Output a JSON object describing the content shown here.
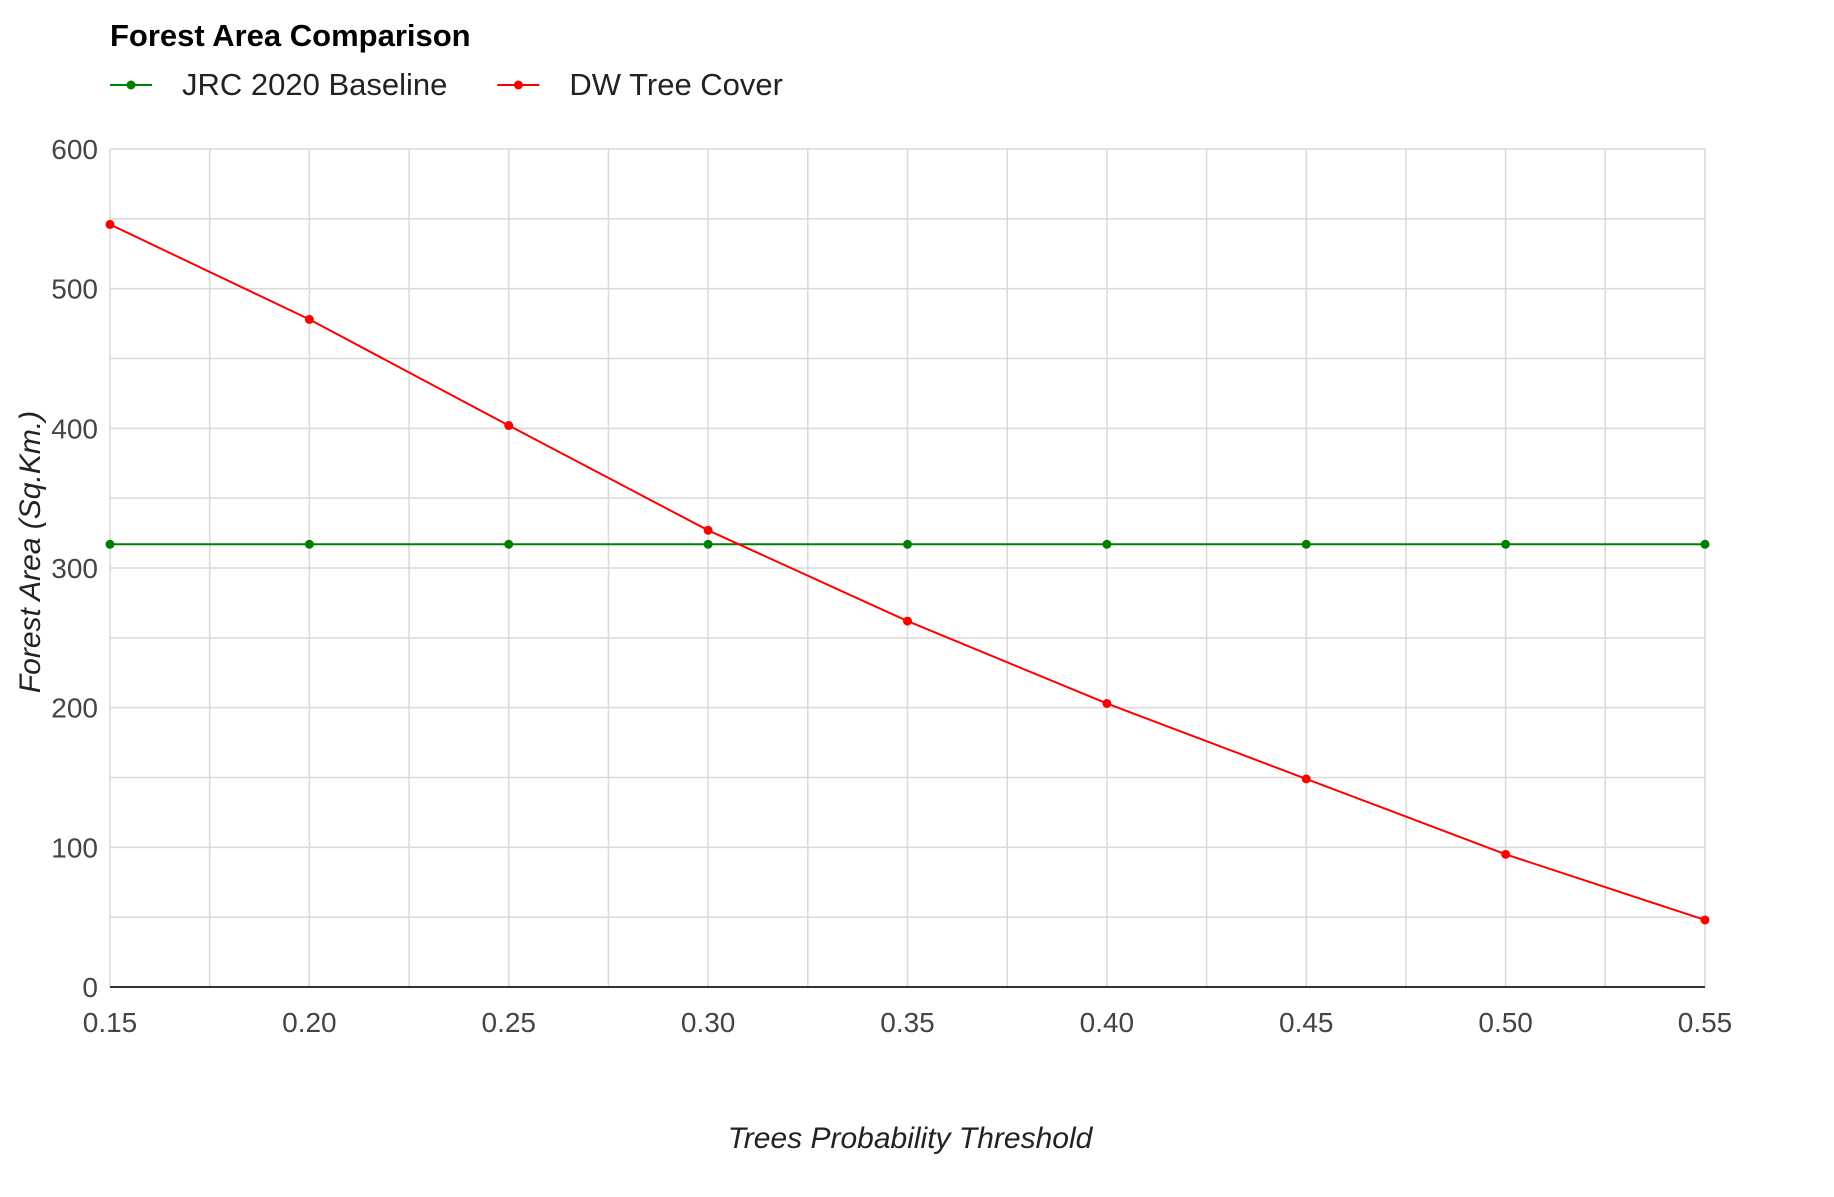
{
  "chart_data": {
    "type": "line",
    "title": "Forest Area Comparison",
    "xlabel": "Trees Probability Threshold",
    "ylabel": "Forest Area (Sq.Km.)",
    "x": [
      0.15,
      0.2,
      0.25,
      0.3,
      0.35,
      0.4,
      0.45,
      0.5,
      0.55
    ],
    "x_tick_labels": [
      "0.15",
      "0.20",
      "0.25",
      "0.30",
      "0.35",
      "0.40",
      "0.45",
      "0.50",
      "0.55"
    ],
    "y_tick_labels": [
      "0",
      "100",
      "200",
      "300",
      "400",
      "500",
      "600"
    ],
    "xlim": [
      0.15,
      0.55
    ],
    "ylim": [
      0,
      600
    ],
    "y_ticks": [
      0,
      100,
      200,
      300,
      400,
      500,
      600
    ],
    "y_minor_gridlines": [
      50,
      150,
      250,
      350,
      450,
      550
    ],
    "x_minor_gridlines": [
      0.175,
      0.225,
      0.275,
      0.325,
      0.375,
      0.425,
      0.475,
      0.525
    ],
    "grid": true,
    "legend_position": "top-left",
    "series": [
      {
        "name": "JRC 2020 Baseline",
        "color": "#008000",
        "values": [
          317,
          317,
          317,
          317,
          317,
          317,
          317,
          317,
          317
        ]
      },
      {
        "name": "DW Tree Cover",
        "color": "#ff0000",
        "values": [
          546,
          478,
          402,
          327,
          262,
          203,
          149,
          95,
          48
        ]
      }
    ],
    "colors": {
      "grid": "#d9d9d9",
      "baseline": "#333333"
    }
  }
}
